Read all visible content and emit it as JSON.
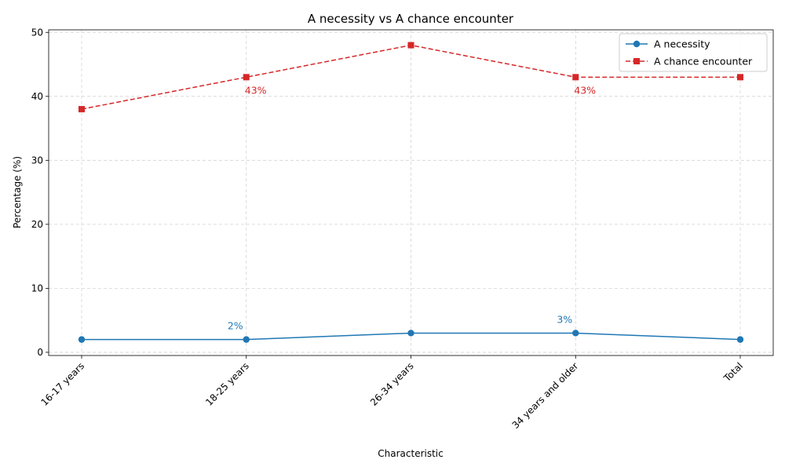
{
  "chart_data": {
    "type": "line",
    "title": "A necessity vs A chance encounter",
    "xlabel": "Characteristic",
    "ylabel": "Percentage (%)",
    "categories": [
      "16-17 years",
      "18-25 years",
      "26-34 years",
      "34 years and older",
      "Total"
    ],
    "ylim": [
      -0.5,
      50.4
    ],
    "yticks": [
      0,
      10,
      20,
      30,
      40,
      50
    ],
    "grid": true,
    "legend_position": "top-right",
    "series": [
      {
        "name": "A necessity",
        "values": [
          2,
          2,
          3,
          3,
          2
        ],
        "color": "#1f77b4",
        "line_style": "solid",
        "marker": "circle",
        "annotations": [
          {
            "index": 1,
            "text": "2%"
          },
          {
            "index": 3,
            "text": "3%"
          }
        ]
      },
      {
        "name": "A chance encounter",
        "values": [
          38,
          43,
          48,
          43,
          43
        ],
        "color": "#d62728",
        "line_style": "dashed",
        "marker": "square",
        "annotations": [
          {
            "index": 1,
            "text": "43%"
          },
          {
            "index": 3,
            "text": "43%"
          }
        ]
      }
    ]
  }
}
